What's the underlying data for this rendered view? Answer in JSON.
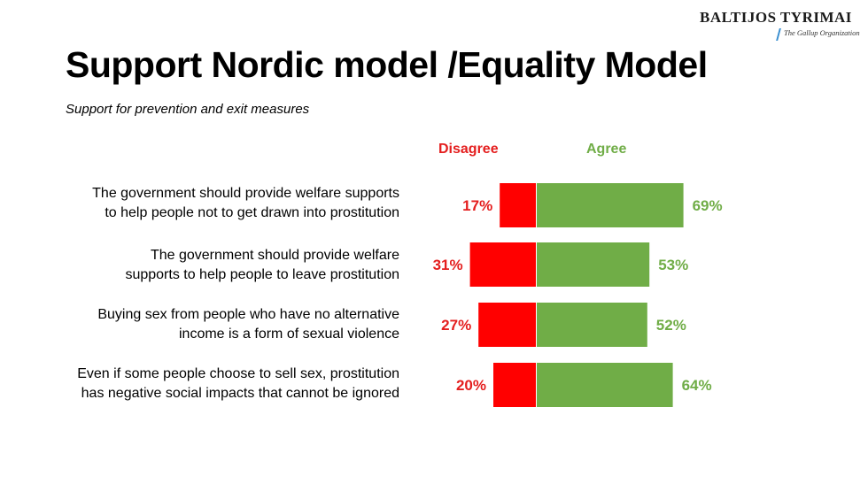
{
  "logo": {
    "name": "BALTIJOS TYRIMAI",
    "tagline": "The Gallup Organization"
  },
  "title": "Support Nordic model /Equality Model",
  "subtitle": "Support for prevention and exit measures",
  "headers": {
    "disagree": "Disagree",
    "agree": "Agree"
  },
  "rows": [
    {
      "line1": "The government should provide welfare supports",
      "line2": "to help people not to get drawn into prostitution"
    },
    {
      "line1": "The government should provide welfare",
      "line2": "supports to help people to leave prostitution"
    },
    {
      "line1": "Buying sex from people who have no alternative",
      "line2": "income is a form of sexual violence"
    },
    {
      "line1": "Even if some people choose to sell sex, prostitution",
      "line2": "has negative social impacts that cannot be ignored"
    }
  ],
  "colors": {
    "disagree": "#ff0000",
    "agree": "#70ad47",
    "disagree_text": "#e41e1e",
    "agree_text": "#70ad47"
  },
  "chart_data": {
    "type": "bar",
    "orientation": "horizontal-diverging",
    "categories": [
      "The government should provide welfare supports to help people not to get drawn into prostitution",
      "The government should provide welfare supports to help people to leave prostitution",
      "Buying sex from people who have no alternative income is a form of sexual violence",
      "Even if some people choose to sell sex, prostitution has negative social impacts that cannot be ignored"
    ],
    "series": [
      {
        "name": "Disagree",
        "values": [
          17,
          31,
          27,
          20
        ],
        "labels": [
          "17%",
          "31%",
          "27%",
          "20%"
        ]
      },
      {
        "name": "Agree",
        "values": [
          69,
          53,
          52,
          64
        ],
        "labels": [
          "69%",
          "53%",
          "52%",
          "64%"
        ]
      }
    ],
    "unit": "%",
    "grid": false
  }
}
